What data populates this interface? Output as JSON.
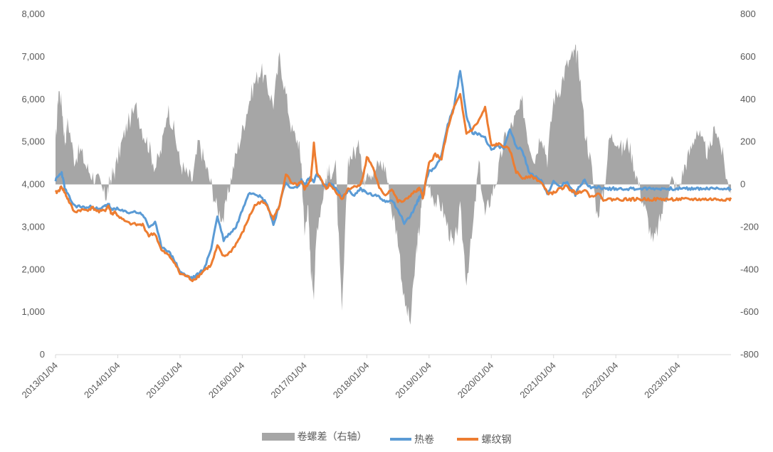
{
  "chart_data": {
    "type": "area+line",
    "title": "",
    "colors": {
      "spread": "#a6a6a6",
      "hrc": "#5b9bd5",
      "rebar": "#ed7d31",
      "axis": "#d9d9d9"
    },
    "left_axis": {
      "ylim": [
        0,
        8000
      ],
      "ticks": [
        "0",
        "1,000",
        "2,000",
        "3,000",
        "4,000",
        "5,000",
        "6,000",
        "7,000",
        "8,000"
      ]
    },
    "right_axis": {
      "ylim": [
        -800,
        800
      ],
      "ticks": [
        "-800",
        "-600",
        "-400",
        "-200",
        "0",
        "200",
        "400",
        "600",
        "800"
      ]
    },
    "x_range": [
      2013.0,
      2023.85
    ],
    "x_ticks": [
      "2013/01/04",
      "2014/01/04",
      "2015/01/04",
      "2016/01/04",
      "2017/01/04",
      "2018/01/04",
      "2019/01/04",
      "2020/01/04",
      "2021/01/04",
      "2022/01/04",
      "2023/01/04"
    ],
    "legend": [
      "卷螺差（右轴）",
      "热卷",
      "螺纹钢"
    ],
    "series": [
      {
        "name": "卷螺差（右轴）",
        "axis": "right",
        "type": "area",
        "x": [
          2013.0,
          2013.05,
          2013.1,
          2013.15,
          2013.2,
          2013.3,
          2013.4,
          2013.5,
          2013.6,
          2013.7,
          2013.8,
          2013.85,
          2013.9,
          2013.95,
          2014.05,
          2014.15,
          2014.3,
          2014.4,
          2014.5,
          2014.6,
          2014.7,
          2014.8,
          2014.9,
          2015.0,
          2015.1,
          2015.2,
          2015.3,
          2015.4,
          2015.5,
          2015.6,
          2015.7,
          2015.8,
          2015.9,
          2016.0,
          2016.1,
          2016.2,
          2016.3,
          2016.4,
          2016.5,
          2016.6,
          2016.7,
          2016.8,
          2016.9,
          2016.95,
          2017.0,
          2017.05,
          2017.1,
          2017.15,
          2017.2,
          2017.3,
          2017.35,
          2017.4,
          2017.5,
          2017.6,
          2017.7,
          2017.8,
          2017.9,
          2017.95,
          2018.0,
          2018.1,
          2018.2,
          2018.3,
          2018.4,
          2018.5,
          2018.6,
          2018.7,
          2018.8,
          2018.85,
          2018.9,
          2019.0,
          2019.1,
          2019.2,
          2019.3,
          2019.4,
          2019.5,
          2019.6,
          2019.7,
          2019.8,
          2019.9,
          2020.0,
          2020.1,
          2020.2,
          2020.3,
          2020.4,
          2020.5,
          2020.6,
          2020.7,
          2020.8,
          2020.9,
          2021.0,
          2021.1,
          2021.2,
          2021.3,
          2021.35,
          2021.4,
          2021.5,
          2021.6,
          2021.7,
          2021.8,
          2021.9,
          2022.0,
          2022.1,
          2022.2,
          2022.3,
          2022.4,
          2022.5,
          2022.6,
          2022.7,
          2022.8,
          2022.9,
          2023.0,
          2023.1,
          2023.2,
          2023.3,
          2023.4,
          2023.5,
          2023.6,
          2023.7,
          2023.8,
          2023.85
        ],
        "y": [
          180,
          450,
          380,
          200,
          300,
          120,
          160,
          80,
          40,
          10,
          -60,
          -20,
          40,
          60,
          180,
          280,
          360,
          250,
          180,
          80,
          160,
          360,
          260,
          100,
          50,
          20,
          200,
          100,
          0,
          -120,
          -160,
          0,
          140,
          250,
          380,
          480,
          540,
          460,
          380,
          600,
          420,
          250,
          200,
          100,
          -240,
          -80,
          -400,
          -500,
          -200,
          -40,
          30,
          60,
          80,
          -620,
          120,
          150,
          180,
          0,
          80,
          50,
          100,
          80,
          -120,
          -250,
          -550,
          -650,
          -300,
          -200,
          -40,
          0,
          -80,
          -100,
          -200,
          -300,
          -120,
          -450,
          -220,
          100,
          -150,
          -50,
          40,
          200,
          260,
          320,
          380,
          200,
          120,
          250,
          120,
          400,
          450,
          550,
          600,
          620,
          580,
          260,
          100,
          -140,
          -50,
          220,
          220,
          160,
          200,
          80,
          -40,
          -150,
          -280,
          -180,
          -60,
          20,
          -30,
          80,
          160,
          260,
          180,
          140,
          280,
          160,
          0,
          -20
        ]
      },
      {
        "name": "热卷",
        "axis": "left",
        "type": "line",
        "x": [
          2013.0,
          2013.05,
          2013.1,
          2013.15,
          2013.2,
          2013.3,
          2013.4,
          2013.5,
          2013.6,
          2013.7,
          2013.8,
          2013.85,
          2013.9,
          2013.95,
          2014.05,
          2014.15,
          2014.3,
          2014.4,
          2014.5,
          2014.6,
          2014.7,
          2014.8,
          2014.9,
          2015.0,
          2015.1,
          2015.2,
          2015.3,
          2015.4,
          2015.5,
          2015.6,
          2015.7,
          2015.8,
          2015.9,
          2016.0,
          2016.1,
          2016.2,
          2016.3,
          2016.4,
          2016.5,
          2016.6,
          2016.7,
          2016.8,
          2016.9,
          2016.95,
          2017.0,
          2017.05,
          2017.1,
          2017.15,
          2017.2,
          2017.3,
          2017.35,
          2017.4,
          2017.5,
          2017.6,
          2017.7,
          2017.8,
          2017.9,
          2017.95,
          2018.0,
          2018.1,
          2018.2,
          2018.3,
          2018.4,
          2018.5,
          2018.6,
          2018.7,
          2018.8,
          2018.85,
          2018.9,
          2019.0,
          2019.1,
          2019.2,
          2019.3,
          2019.4,
          2019.5,
          2019.6,
          2019.7,
          2019.8,
          2019.9,
          2020.0,
          2020.1,
          2020.2,
          2020.3,
          2020.4,
          2020.5,
          2020.6,
          2020.7,
          2020.8,
          2020.9,
          2021.0,
          2021.1,
          2021.2,
          2021.3,
          2021.35,
          2021.4,
          2021.5,
          2021.6,
          2021.7,
          2021.8,
          2021.9,
          2022.0,
          2022.1,
          2022.2,
          2022.3,
          2022.4,
          2022.5,
          2022.6,
          2022.7,
          2022.8,
          2022.9,
          2023.0,
          2023.1,
          2023.2,
          2023.3,
          2023.4,
          2023.5,
          2023.6,
          2023.7,
          2023.8,
          2023.85
        ],
        "y": [
          4100,
          4200,
          4280,
          3900,
          3750,
          3500,
          3480,
          3450,
          3480,
          3400,
          3500,
          3550,
          3380,
          3450,
          3380,
          3350,
          3350,
          3300,
          3000,
          3100,
          2550,
          2450,
          2250,
          1950,
          1850,
          1800,
          1900,
          2050,
          2500,
          3250,
          2700,
          2850,
          3000,
          3400,
          3800,
          3800,
          3700,
          3550,
          3050,
          3550,
          4050,
          3900,
          3950,
          4100,
          4000,
          4100,
          4150,
          4050,
          4250,
          4000,
          3950,
          4050,
          3900,
          3700,
          3850,
          3750,
          3900,
          3850,
          3800,
          3750,
          3700,
          3600,
          3650,
          3400,
          3100,
          3250,
          3550,
          3700,
          3850,
          4300,
          4400,
          4700,
          5400,
          5800,
          6700,
          5600,
          5200,
          5200,
          5100,
          4800,
          4900,
          4850,
          5300,
          4900,
          4800,
          4300,
          4200,
          4100,
          3800,
          4050,
          3950,
          4050,
          3900,
          3750,
          3950,
          4100,
          3900,
          3950,
          3900,
          3900,
          3900,
          3900,
          3900,
          3900,
          3900,
          3900,
          3900,
          3900,
          3900,
          3900,
          3900,
          3900,
          3900,
          3900,
          3900,
          3900,
          3900,
          3900,
          3900,
          3900
        ]
      },
      {
        "name": "螺纹钢",
        "axis": "left",
        "type": "line",
        "x": [
          2013.0,
          2013.05,
          2013.1,
          2013.15,
          2013.2,
          2013.3,
          2013.4,
          2013.5,
          2013.6,
          2013.7,
          2013.8,
          2013.85,
          2013.9,
          2013.95,
          2014.05,
          2014.15,
          2014.3,
          2014.4,
          2014.5,
          2014.6,
          2014.7,
          2014.8,
          2014.9,
          2015.0,
          2015.1,
          2015.2,
          2015.3,
          2015.4,
          2015.5,
          2015.6,
          2015.7,
          2015.8,
          2015.9,
          2016.0,
          2016.1,
          2016.2,
          2016.3,
          2016.4,
          2016.5,
          2016.6,
          2016.7,
          2016.8,
          2016.9,
          2016.95,
          2017.0,
          2017.05,
          2017.1,
          2017.15,
          2017.2,
          2017.3,
          2017.35,
          2017.4,
          2017.5,
          2017.6,
          2017.7,
          2017.8,
          2017.9,
          2017.95,
          2018.0,
          2018.1,
          2018.2,
          2018.3,
          2018.4,
          2018.5,
          2018.6,
          2018.7,
          2018.8,
          2018.85,
          2018.9,
          2019.0,
          2019.1,
          2019.2,
          2019.3,
          2019.4,
          2019.5,
          2019.6,
          2019.7,
          2019.8,
          2019.9,
          2020.0,
          2020.1,
          2020.2,
          2020.3,
          2020.4,
          2020.5,
          2020.6,
          2020.7,
          2020.8,
          2020.9,
          2021.0,
          2021.1,
          2021.2,
          2021.3,
          2021.35,
          2021.4,
          2021.5,
          2021.6,
          2021.7,
          2021.8,
          2021.9,
          2022.0,
          2022.1,
          2022.2,
          2022.3,
          2022.4,
          2022.5,
          2022.6,
          2022.7,
          2022.8,
          2022.9,
          2023.0,
          2023.1,
          2023.2,
          2023.3,
          2023.4,
          2023.5,
          2023.6,
          2023.7,
          2023.8,
          2023.85
        ],
        "y": [
          3800,
          3850,
          3950,
          3800,
          3650,
          3350,
          3400,
          3400,
          3450,
          3350,
          3400,
          3500,
          3300,
          3350,
          3200,
          3100,
          3050,
          3050,
          2800,
          2850,
          2450,
          2350,
          2200,
          1900,
          1850,
          1750,
          1850,
          2000,
          2100,
          2550,
          2300,
          2400,
          2600,
          2850,
          3200,
          3500,
          3600,
          3500,
          3200,
          3500,
          4250,
          4000,
          4000,
          4050,
          3900,
          4000,
          4100,
          4950,
          4300,
          4000,
          3900,
          4000,
          3850,
          3650,
          3900,
          3950,
          4000,
          4250,
          4650,
          4400,
          3900,
          3750,
          3900,
          3600,
          3600,
          3750,
          3850,
          3900,
          3700,
          4500,
          4700,
          4600,
          5300,
          5800,
          6100,
          5200,
          5300,
          5500,
          5800,
          4900,
          4950,
          4900,
          4800,
          4300,
          4150,
          4200,
          4150,
          4050,
          3800,
          3800,
          3900,
          3950,
          3850,
          3800,
          3800,
          3900,
          3700,
          3800,
          3650,
          3650,
          3650,
          3650,
          3650,
          3650,
          3650,
          3650,
          3650,
          3650,
          3650,
          3650,
          3650,
          3650,
          3650,
          3650,
          3650,
          3650,
          3650,
          3650,
          3650,
          3650
        ]
      }
    ]
  }
}
